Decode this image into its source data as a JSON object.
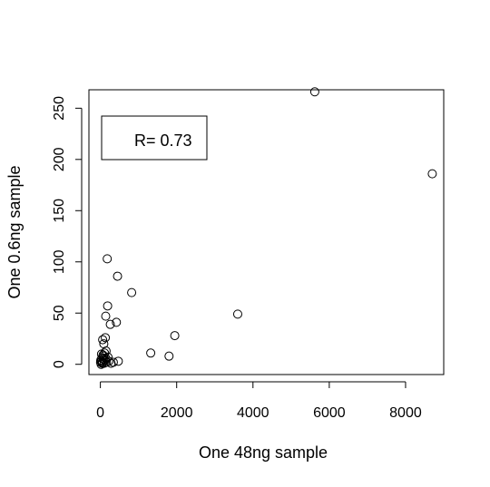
{
  "chart_data": {
    "type": "scatter",
    "title": "",
    "xlabel": "One 48ng sample",
    "ylabel": "One 0.6ng sample",
    "xlim": [
      -300,
      9000
    ],
    "ylim": [
      -10,
      268
    ],
    "xticks": [
      0,
      2000,
      4000,
      6000,
      8000
    ],
    "yticks": [
      0,
      50,
      100,
      150,
      200,
      250
    ],
    "xtick_labels": [
      "0",
      "2000",
      "4000",
      "6000",
      "8000"
    ],
    "ytick_labels": [
      "0",
      "50",
      "100",
      "150",
      "200",
      "250"
    ],
    "grid": false,
    "legend_position": "top-left",
    "annotation": "R= 0.73",
    "marker": "open-circle",
    "points": [
      {
        "x": 5620,
        "y": 266
      },
      {
        "x": 8700,
        "y": 186
      },
      {
        "x": 3600,
        "y": 49
      },
      {
        "x": 1950,
        "y": 28
      },
      {
        "x": 1800,
        "y": 8
      },
      {
        "x": 1320,
        "y": 11
      },
      {
        "x": 820,
        "y": 70
      },
      {
        "x": 450,
        "y": 86
      },
      {
        "x": 180,
        "y": 103
      },
      {
        "x": 190,
        "y": 57
      },
      {
        "x": 140,
        "y": 47
      },
      {
        "x": 420,
        "y": 41
      },
      {
        "x": 260,
        "y": 39
      },
      {
        "x": 130,
        "y": 26
      },
      {
        "x": 60,
        "y": 24
      },
      {
        "x": 90,
        "y": 20
      },
      {
        "x": 150,
        "y": 13
      },
      {
        "x": 110,
        "y": 11
      },
      {
        "x": 70,
        "y": 9
      },
      {
        "x": 200,
        "y": 7
      },
      {
        "x": 40,
        "y": 6
      },
      {
        "x": 80,
        "y": 5
      },
      {
        "x": 120,
        "y": 4
      },
      {
        "x": 30,
        "y": 3
      },
      {
        "x": 60,
        "y": 2
      },
      {
        "x": 100,
        "y": 1
      },
      {
        "x": 20,
        "y": 0
      },
      {
        "x": 50,
        "y": 1
      },
      {
        "x": 160,
        "y": 2
      },
      {
        "x": 220,
        "y": 3
      },
      {
        "x": 280,
        "y": 1
      },
      {
        "x": 340,
        "y": 2
      },
      {
        "x": 470,
        "y": 3
      },
      {
        "x": 10,
        "y": 4
      },
      {
        "x": 5,
        "y": 2
      },
      {
        "x": 90,
        "y": 8
      },
      {
        "x": 140,
        "y": 6
      },
      {
        "x": 30,
        "y": 10
      }
    ]
  }
}
